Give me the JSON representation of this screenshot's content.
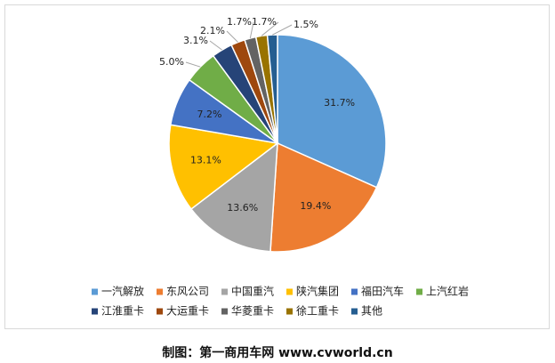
{
  "chart_data": {
    "type": "pie",
    "categories": [
      "一汽解放",
      "东风公司",
      "中国重汽",
      "陕汽集团",
      "福田汽车",
      "上汽红岩",
      "江淮重卡",
      "大运重卡",
      "华菱重卡",
      "徐工重卡",
      "其他"
    ],
    "values": [
      31.7,
      19.4,
      13.6,
      13.1,
      7.2,
      5.0,
      3.1,
      2.1,
      1.7,
      1.7,
      1.5
    ],
    "value_labels": [
      "31.7%",
      "19.4%",
      "13.6%",
      "13.1%",
      "7.2%",
      "5.0%",
      "3.1%",
      "2.1%",
      "1.7%",
      "1.7%",
      "1.5%"
    ],
    "colors": [
      "#5b9bd5",
      "#ed7d31",
      "#a5a5a5",
      "#ffc000",
      "#4472c4",
      "#70ad47",
      "#264478",
      "#9e480e",
      "#636363",
      "#997300",
      "#255e91"
    ],
    "source": "制图：第一商用车网 www.cvworld.cn"
  }
}
